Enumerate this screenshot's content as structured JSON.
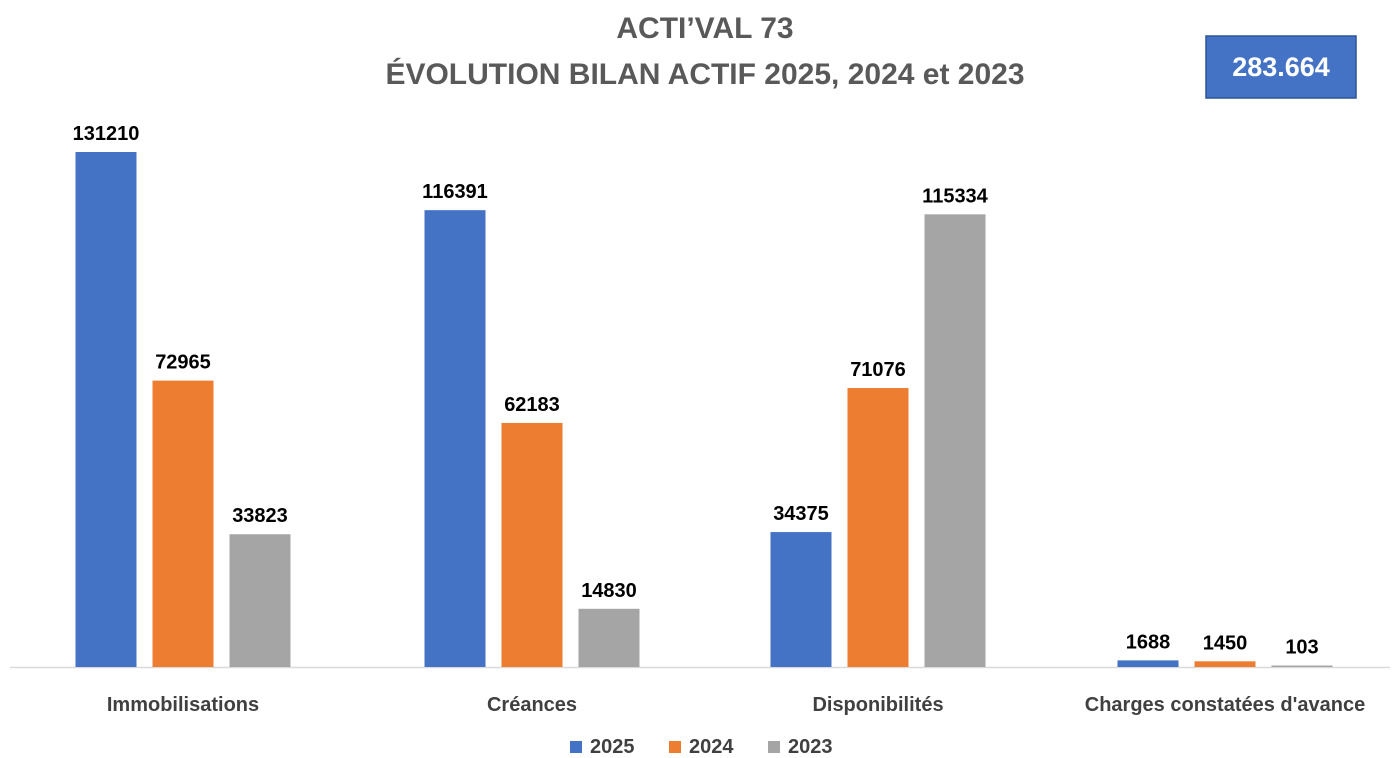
{
  "header": {
    "title_line1": "ACTI’VAL 73",
    "title_line2": "ÉVOLUTION BILAN ACTIF 2025, 2024 et 2023"
  },
  "total_badge": {
    "value": "283.664",
    "bg_color": "#4472C4"
  },
  "chart_data": {
    "type": "bar",
    "title": "ACTI’VAL 73 ÉVOLUTION BILAN ACTIF 2025, 2024 et 2023",
    "categories": [
      "Immobilisations",
      "Créances",
      "Disponibilités",
      "Charges constatées d'avance"
    ],
    "series": [
      {
        "name": "2025",
        "color": "#4472C4",
        "values": [
          131210,
          116391,
          34375,
          1688
        ]
      },
      {
        "name": "2024",
        "color": "#ED7D31",
        "values": [
          72965,
          62183,
          71076,
          1450
        ]
      },
      {
        "name": "2023",
        "color": "#A5A5A5",
        "values": [
          33823,
          14830,
          115334,
          103
        ]
      }
    ],
    "ylim": [
      0,
      131210
    ],
    "grid": false,
    "legend_position": "bottom"
  }
}
